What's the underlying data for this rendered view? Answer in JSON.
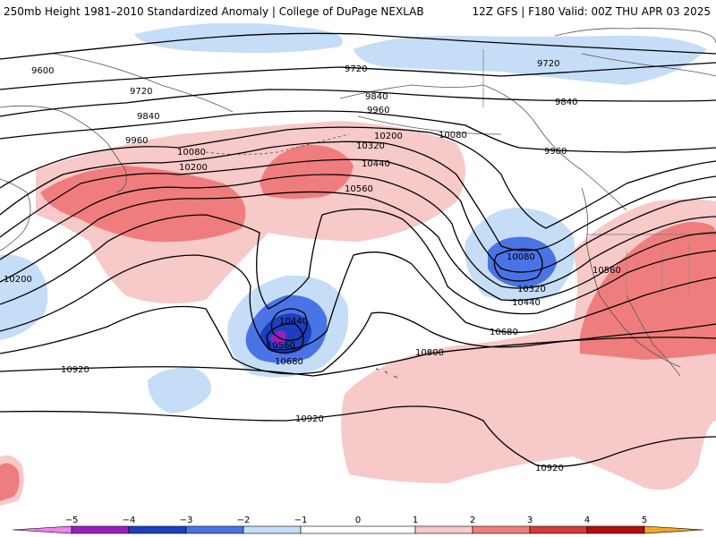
{
  "header": {
    "title_left": "250mb Height 1981–2010 Standardized Anomaly | College of DuPage NEXLAB",
    "title_right": "12Z GFS | F180 Valid: 00Z THU APR 03 2025"
  },
  "contour_labels": [
    {
      "id": "9600",
      "text": "9600"
    },
    {
      "id": "9720-w",
      "text": "9720"
    },
    {
      "id": "9720-c",
      "text": "9720"
    },
    {
      "id": "9720-e",
      "text": "9720"
    },
    {
      "id": "9840-w",
      "text": "9840"
    },
    {
      "id": "9840-c",
      "text": "9840"
    },
    {
      "id": "9840-e",
      "text": "9840"
    },
    {
      "id": "9960-w",
      "text": "9960"
    },
    {
      "id": "9960-c",
      "text": "9960"
    },
    {
      "id": "9960-e",
      "text": "9960"
    },
    {
      "id": "10080-w",
      "text": "10080"
    },
    {
      "id": "10080-c",
      "text": "10080"
    },
    {
      "id": "10080-low",
      "text": "10080"
    },
    {
      "id": "10200-w",
      "text": "10200"
    },
    {
      "id": "10200-c",
      "text": "10200"
    },
    {
      "id": "10200-far-w",
      "text": "10200"
    },
    {
      "id": "10320-c",
      "text": "10320"
    },
    {
      "id": "10320-low",
      "text": "10320"
    },
    {
      "id": "10440-c",
      "text": "10440"
    },
    {
      "id": "10440-low",
      "text": "10440"
    },
    {
      "id": "10440-cut",
      "text": "10440"
    },
    {
      "id": "10560-c",
      "text": "10560"
    },
    {
      "id": "10560-cut",
      "text": "10560"
    },
    {
      "id": "10560-e",
      "text": "10560"
    },
    {
      "id": "10680-cut",
      "text": "10680"
    },
    {
      "id": "10680-e",
      "text": "10680"
    },
    {
      "id": "10800",
      "text": "10800"
    },
    {
      "id": "10920-w",
      "text": "10920"
    },
    {
      "id": "10920-c",
      "text": "10920"
    },
    {
      "id": "10920-e",
      "text": "10920"
    }
  ],
  "colorbar": {
    "ticks": [
      "−5",
      "−4",
      "−3",
      "−2",
      "−1",
      "0",
      "1",
      "2",
      "3",
      "4",
      "5"
    ],
    "colors": {
      "m5": "#ee82ee",
      "m4": "#9a1fbf",
      "m3": "#1d3fbf",
      "m2": "#4a74e6",
      "m1": "#c6ddf7",
      "zero": "#ffffff",
      "p1": "#f7c9c9",
      "p2": "#f07d7d",
      "p3": "#d63a3a",
      "p4": "#b50d0d",
      "p5": "#f5a623"
    }
  }
}
